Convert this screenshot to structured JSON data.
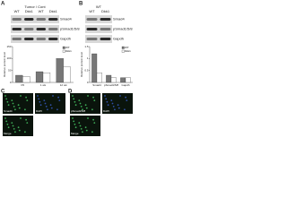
{
  "panels": {
    "a": "A",
    "b": "B",
    "c": "C",
    "d": "D"
  },
  "blot_a": {
    "header": "Tumor / Cont",
    "lanes": [
      "WT",
      "Dkk1",
      "WT",
      "Dkk1"
    ],
    "rows": [
      "Smad4",
      "pSmad1/5/8",
      "Gapdh"
    ]
  },
  "blot_b": {
    "header": "WT",
    "lanes": [
      "WT",
      "Dkk1"
    ],
    "rows": [
      "Smad4",
      "pSmad1/5/8",
      "Gapdh"
    ]
  },
  "micro_c": [
    "Smad4",
    "DAPI",
    "Merge"
  ],
  "micro_d": [
    "pSmad1/5/8",
    "DAPI",
    "Merge"
  ],
  "chart_data": [
    {
      "type": "bar",
      "ylabel": "Relative protein level",
      "categories": [
        "P0",
        "1 wk",
        "12 wk"
      ],
      "series": [
        {
          "name": "WT",
          "color": "#777777",
          "values": [
            30,
            45,
            100
          ]
        },
        {
          "name": "Dkk1",
          "color": "#ffffff",
          "values": [
            25,
            40,
            65
          ]
        }
      ],
      "ylim": [
        0,
        150
      ],
      "yticks": [
        0,
        50,
        100,
        150
      ]
    },
    {
      "type": "bar",
      "ylabel": "Relative protein level",
      "categories": [
        "Smad4",
        "pSmad1/5/8",
        "Gapdh"
      ],
      "series": [
        {
          "name": "WT",
          "color": "#777777",
          "values": [
            1.2,
            0.3,
            0.2
          ]
        },
        {
          "name": "Dkk1",
          "color": "#ffffff",
          "values": [
            0.4,
            0.2,
            0.2
          ]
        }
      ],
      "ylim": [
        0,
        1.5
      ],
      "yticks": [
        0,
        0.5,
        1,
        1.5
      ]
    }
  ]
}
